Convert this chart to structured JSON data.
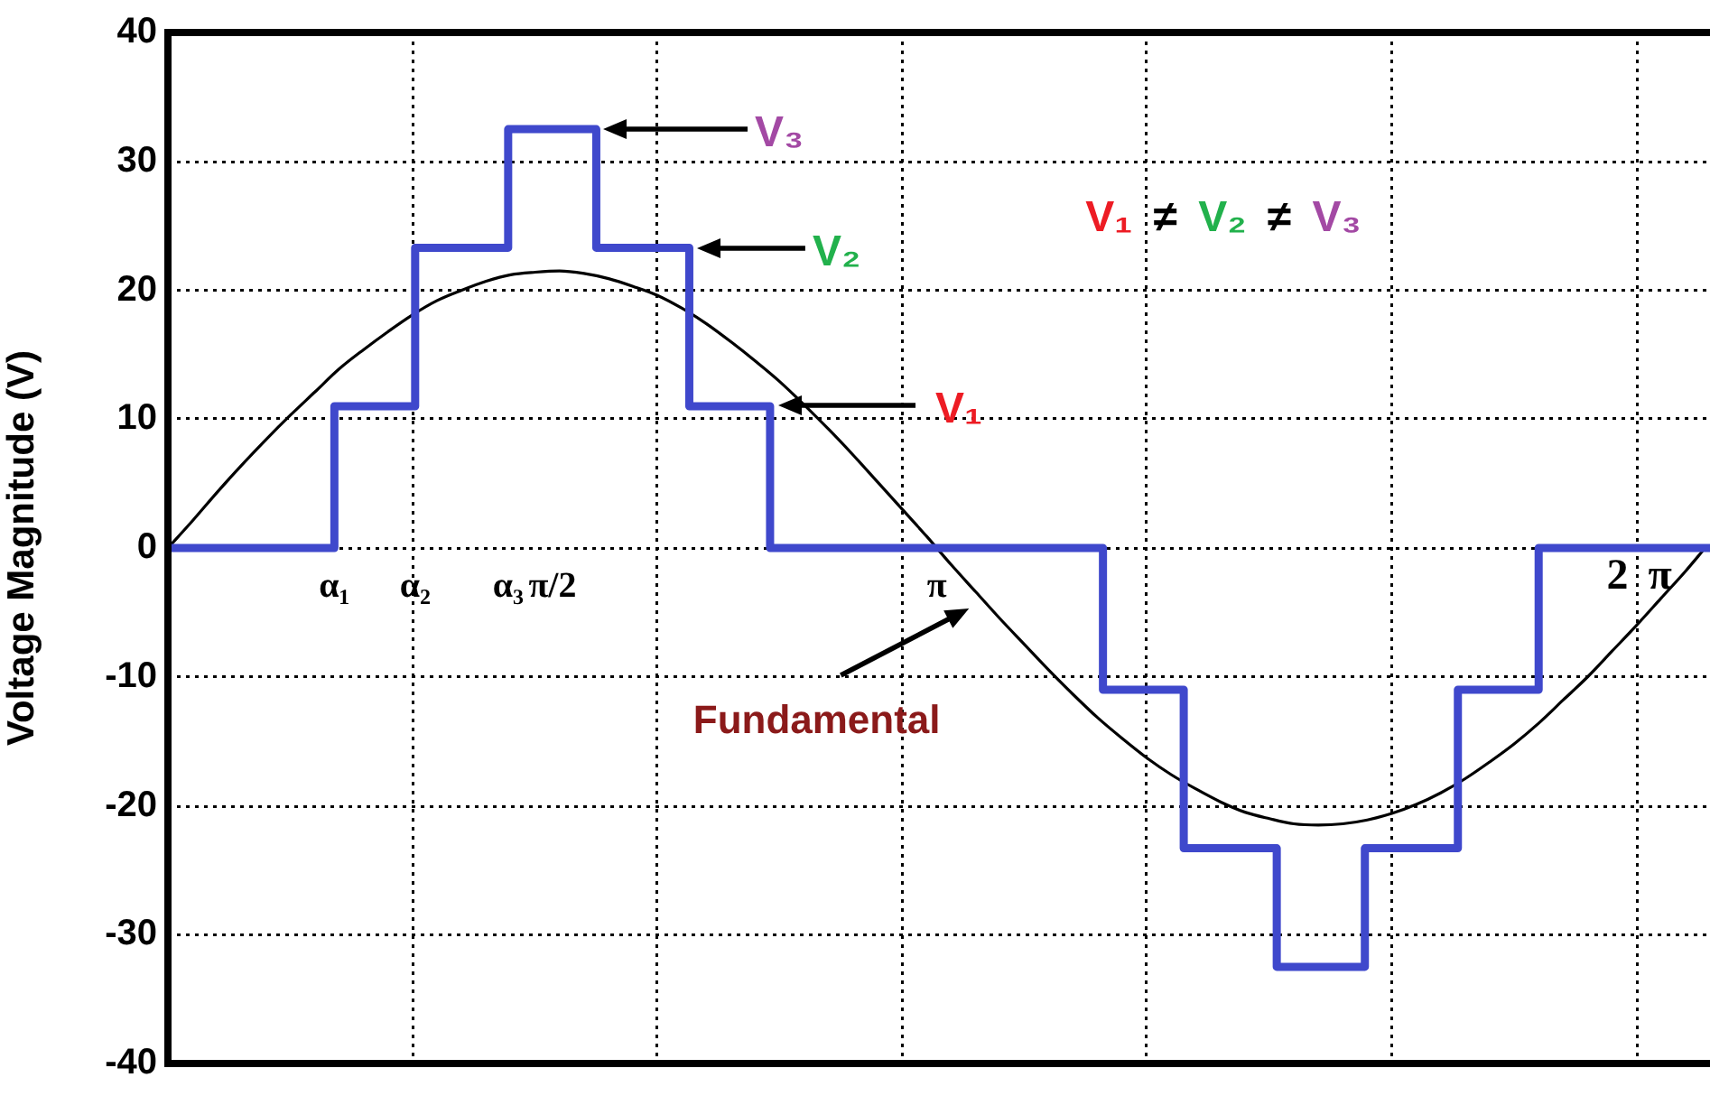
{
  "chart_data": {
    "type": "line",
    "ylabel": "Voltage Magnitude (V)",
    "xlim": [
      0,
      6.3
    ],
    "xticks": [
      {
        "value": 0.68,
        "label": "α₁"
      },
      {
        "value": 1,
        "label": null
      },
      {
        "value": 1.01,
        "label": "α₂"
      },
      {
        "value": 1.39,
        "label": "α₃"
      },
      {
        "value": 1.571,
        "label": "π/2"
      },
      {
        "value": 2,
        "label": null
      },
      {
        "value": 3,
        "label": null
      },
      {
        "value": 3.142,
        "label": "π"
      },
      {
        "value": 4,
        "label": null
      },
      {
        "value": 5,
        "label": null
      },
      {
        "value": 6,
        "label": null
      }
    ],
    "ylim": [
      -40,
      40
    ],
    "yticks": [
      -40,
      -30,
      -20,
      -10,
      0,
      10,
      20,
      30,
      40
    ],
    "grid": true,
    "series": [
      {
        "type": "step",
        "color": "#3f48cc",
        "x": [
          0,
          0.68,
          1.01,
          1.39,
          1.75,
          2.13,
          2.46,
          3.82,
          4.15,
          4.53,
          4.89,
          5.27,
          5.6,
          6.3
        ],
        "values": [
          0,
          11,
          23.3,
          32.5,
          23.3,
          11,
          0,
          -11,
          -23.3,
          -32.5,
          -23.3,
          -11,
          0,
          0
        ]
      },
      {
        "type": "line",
        "color": "#000000",
        "x": [
          0,
          0.1,
          0.2,
          0.3,
          0.4,
          0.5,
          0.6,
          0.7,
          0.8,
          0.9,
          1.0,
          1.1,
          1.2,
          1.3,
          1.4,
          1.5,
          1.6,
          1.7,
          1.8,
          1.9,
          2.0,
          2.1,
          2.2,
          2.3,
          2.4,
          2.5,
          2.7,
          2.8,
          2.9,
          3.0,
          3.1,
          3.2,
          3.3,
          3.4,
          3.5,
          3.6,
          3.7,
          3.8,
          3.9,
          4.0,
          4.1,
          4.2,
          4.3,
          4.4,
          4.5,
          4.6,
          4.7,
          4.8,
          4.9,
          5.0,
          5.1,
          5.2,
          5.3,
          5.4,
          5.5,
          5.6,
          5.7,
          5.8,
          5.9,
          6.0,
          6.1,
          6.2,
          6.28
        ],
        "values": [
          0,
          2.1,
          4.3,
          6.4,
          8.4,
          10.3,
          12.1,
          13.9,
          15.4,
          16.8,
          18.1,
          19.2,
          20.0,
          20.7,
          21.2,
          21.4,
          21.5,
          21.3,
          20.9,
          20.3,
          19.6,
          18.6,
          17.4,
          16.0,
          14.5,
          12.9,
          9.2,
          7.2,
          5.1,
          3.0,
          0.9,
          -1.3,
          -3.4,
          -5.5,
          -7.5,
          -9.5,
          -11.4,
          -13.2,
          -14.8,
          -16.3,
          -17.6,
          -18.7,
          -19.7,
          -20.5,
          -21.0,
          -21.4,
          -21.5,
          -21.4,
          -21.1,
          -20.6,
          -19.9,
          -19.0,
          -17.9,
          -16.6,
          -15.2,
          -13.6,
          -11.8,
          -10.0,
          -8.0,
          -6.0,
          -3.9,
          -1.8,
          0
        ]
      }
    ],
    "annotations": [
      "V₃",
      "V₂",
      "V₁",
      "V₁ ≠ V₂ ≠ V₃",
      "2 π",
      {
        "text": "Fundamental",
        "x": 3.3,
        "y": -3.4
      }
    ]
  }
}
